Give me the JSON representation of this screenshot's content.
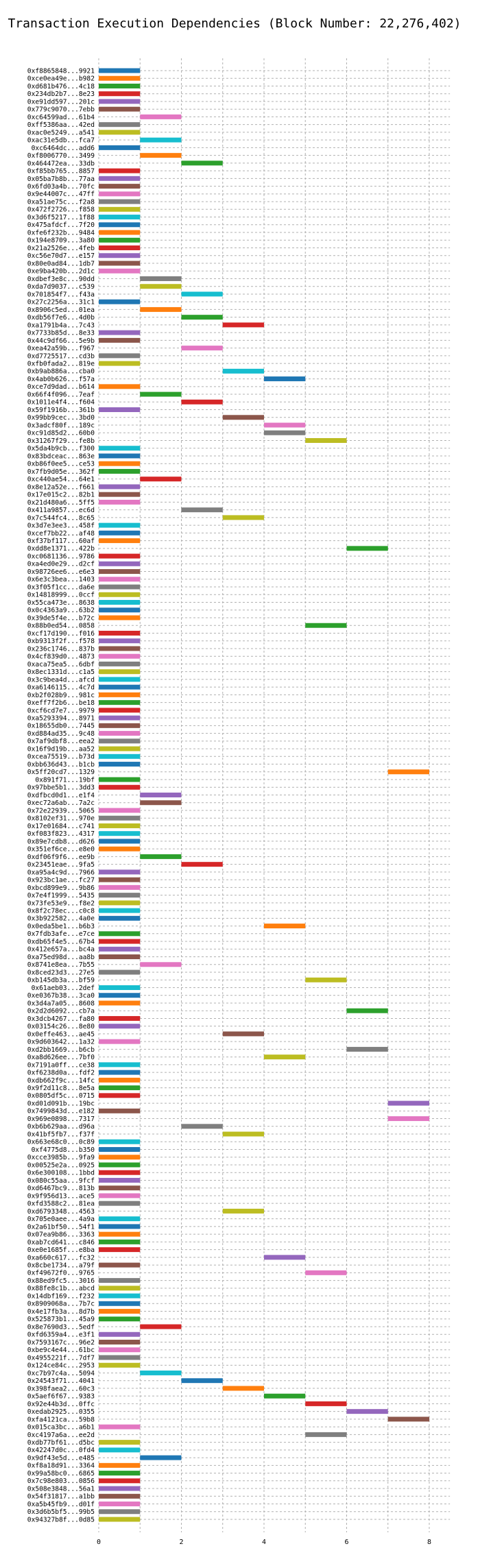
{
  "chart_data": {
    "type": "bar",
    "orientation": "horizontal",
    "title": "Transaction Execution Dependencies (Block Number: 22,276,402)",
    "xlabel": "",
    "ylabel": "",
    "xlim": [
      0,
      8.5
    ],
    "xticks": [
      0,
      2,
      4,
      6,
      8
    ],
    "grid": true,
    "palette": [
      "#1f77b4",
      "#ff7f0e",
      "#2ca02c",
      "#d62728",
      "#9467bd",
      "#8c564b",
      "#e377c2",
      "#7f7f7f",
      "#bcbd22",
      "#17becf"
    ],
    "bar_width": 1,
    "transactions": [
      {
        "hash": "0xf8865848...9921",
        "start": 0
      },
      {
        "hash": "0xce0ea49e...b982",
        "start": 0
      },
      {
        "hash": "0xd681b476...4c18",
        "start": 0
      },
      {
        "hash": "0x234db2b7...8e23",
        "start": 0
      },
      {
        "hash": "0xe91dd597...201c",
        "start": 0
      },
      {
        "hash": "0x779c9070...7ebb",
        "start": 0
      },
      {
        "hash": "0xc64599ad...61b4",
        "start": 1
      },
      {
        "hash": "0xff5386aa...42ed",
        "start": 0
      },
      {
        "hash": "0xac0e5249...a541",
        "start": 0
      },
      {
        "hash": "0xac31e5db...fca7",
        "start": 1
      },
      {
        "hash": "0xc6464dc...add6",
        "start": 0
      },
      {
        "hash": "0xf8006770...3499",
        "start": 1
      },
      {
        "hash": "0x464472ea...33db",
        "start": 2
      },
      {
        "hash": "0xf85bb765...8857",
        "start": 0
      },
      {
        "hash": "0x05ba7b8b...77aa",
        "start": 0
      },
      {
        "hash": "0x6fd03a4b...70fc",
        "start": 0
      },
      {
        "hash": "0x9e44007c...47ff",
        "start": 0
      },
      {
        "hash": "0xa51ae75c...f2a8",
        "start": 0
      },
      {
        "hash": "0x472f2726...f858",
        "start": 0
      },
      {
        "hash": "0x3d6f5217...1f88",
        "start": 0
      },
      {
        "hash": "0x475afdcf...7f20",
        "start": 0
      },
      {
        "hash": "0xfe6f232b...9484",
        "start": 0
      },
      {
        "hash": "0x194e8709...3a80",
        "start": 0
      },
      {
        "hash": "0x21a2526e...4feb",
        "start": 0
      },
      {
        "hash": "0xc56e70d7...e157",
        "start": 0
      },
      {
        "hash": "0x80e0ad84...1db7",
        "start": 0
      },
      {
        "hash": "0xe9ba420b...2d1c",
        "start": 0
      },
      {
        "hash": "0xdbef3e8c...90dd",
        "start": 1
      },
      {
        "hash": "0xda7d9037...c539",
        "start": 1
      },
      {
        "hash": "0x701854f7...f43a",
        "start": 2
      },
      {
        "hash": "0x27c2256a...31c1",
        "start": 0
      },
      {
        "hash": "0x8906c5ed...01ea",
        "start": 1
      },
      {
        "hash": "0xdb56f7e6...4d0b",
        "start": 2
      },
      {
        "hash": "0xa1791b4a...7c43",
        "start": 3
      },
      {
        "hash": "0x7733b85d...8e33",
        "start": 0
      },
      {
        "hash": "0x44c9df66...5e9b",
        "start": 0
      },
      {
        "hash": "0xea42a59b...f967",
        "start": 2
      },
      {
        "hash": "0xd7725517...cd3b",
        "start": 0
      },
      {
        "hash": "0xfb0fada2...819e",
        "start": 0
      },
      {
        "hash": "0xb9ab886a...cba0",
        "start": 3
      },
      {
        "hash": "0x4ab0b626...f57a",
        "start": 4
      },
      {
        "hash": "0xce7d9dad...b614",
        "start": 0
      },
      {
        "hash": "0x66f4f096...7eaf",
        "start": 1
      },
      {
        "hash": "0x1011e4f4...f604",
        "start": 2
      },
      {
        "hash": "0x59f1916b...361b",
        "start": 0
      },
      {
        "hash": "0x99bb9cec...3bd0",
        "start": 3
      },
      {
        "hash": "0x3adcf80f...189c",
        "start": 4
      },
      {
        "hash": "0xc91d85d2...60b0",
        "start": 4
      },
      {
        "hash": "0x31267f29...fe8b",
        "start": 5
      },
      {
        "hash": "0x5da4b9cb...f300",
        "start": 0
      },
      {
        "hash": "0x83bdceac...863e",
        "start": 0
      },
      {
        "hash": "0xb86f0ee5...ce53",
        "start": 0
      },
      {
        "hash": "0x7fb9d05e...362f",
        "start": 0
      },
      {
        "hash": "0xc440ae54...64e1",
        "start": 1
      },
      {
        "hash": "0x8e12a52e...f661",
        "start": 0
      },
      {
        "hash": "0x17e015c2...82b1",
        "start": 0
      },
      {
        "hash": "0x21d480a6...5ff5",
        "start": 0
      },
      {
        "hash": "0x411a9857...ec6d",
        "start": 2
      },
      {
        "hash": "0x7c544fc4...8c65",
        "start": 3
      },
      {
        "hash": "0x3d7e3ee3...458f",
        "start": 0
      },
      {
        "hash": "0xcef7bb22...af48",
        "start": 0
      },
      {
        "hash": "0xf37bf117...60af",
        "start": 0
      },
      {
        "hash": "0xdd8e1371...422b",
        "start": 6
      },
      {
        "hash": "0xc0681136...9786",
        "start": 0
      },
      {
        "hash": "0xa4ed0e29...d2cf",
        "start": 0
      },
      {
        "hash": "0x98726ee6...e6e3",
        "start": 0
      },
      {
        "hash": "0x6e3c3bea...1403",
        "start": 0
      },
      {
        "hash": "0x3f05f1cc...da6e",
        "start": 0
      },
      {
        "hash": "0x14818999...0ccf",
        "start": 0
      },
      {
        "hash": "0x55ca473e...8638",
        "start": 0
      },
      {
        "hash": "0x0c4363a9...63b2",
        "start": 0
      },
      {
        "hash": "0x39de5f4e...b72c",
        "start": 0
      },
      {
        "hash": "0x88b0ed54...0858",
        "start": 5
      },
      {
        "hash": "0xcf17d190...f016",
        "start": 0
      },
      {
        "hash": "0xb9313f2f...f578",
        "start": 0
      },
      {
        "hash": "0x236c1746...837b",
        "start": 0
      },
      {
        "hash": "0x4cf839d0...4873",
        "start": 0
      },
      {
        "hash": "0xaca75ea5...6dbf",
        "start": 0
      },
      {
        "hash": "0x8ec1331d...c1a5",
        "start": 0
      },
      {
        "hash": "0x3c9bea4d...afcd",
        "start": 0
      },
      {
        "hash": "0xa6146115...4c7d",
        "start": 0
      },
      {
        "hash": "0xb2f028b9...981c",
        "start": 0
      },
      {
        "hash": "0xeff7f2b6...be18",
        "start": 0
      },
      {
        "hash": "0xcf6cd7e7...9979",
        "start": 0
      },
      {
        "hash": "0xa5293394...8971",
        "start": 0
      },
      {
        "hash": "0x18655db0...7445",
        "start": 0
      },
      {
        "hash": "0xd884ad35...9c48",
        "start": 0
      },
      {
        "hash": "0x7af9dbf8...eea2",
        "start": 0
      },
      {
        "hash": "0x16f9d19b...aa52",
        "start": 0
      },
      {
        "hash": "0xcea75519...b73d",
        "start": 0
      },
      {
        "hash": "0xbb636d43...b1cb",
        "start": 0
      },
      {
        "hash": "0x5ff20cd7...1329",
        "start": 7
      },
      {
        "hash": "0x891f71...19bf",
        "start": 0
      },
      {
        "hash": "0x97bbe5b1...3dd3",
        "start": 0
      },
      {
        "hash": "0xdfbcd0d1...e1f4",
        "start": 1
      },
      {
        "hash": "0xec72a6ab...7a2c",
        "start": 1
      },
      {
        "hash": "0x72e22939...5065",
        "start": 0
      },
      {
        "hash": "0x8102ef31...970e",
        "start": 0
      },
      {
        "hash": "0x17e01684...c741",
        "start": 0
      },
      {
        "hash": "0xf083f823...4317",
        "start": 0
      },
      {
        "hash": "0x89e7cdb8...d626",
        "start": 0
      },
      {
        "hash": "0x351ef6ce...e8e0",
        "start": 0
      },
      {
        "hash": "0xdf06f9f6...ee9b",
        "start": 1
      },
      {
        "hash": "0x23451eae...9fa5",
        "start": 2
      },
      {
        "hash": "0xa95a4c9d...7966",
        "start": 0
      },
      {
        "hash": "0x923bc1ae...fc27",
        "start": 0
      },
      {
        "hash": "0xbcd899e9...9b86",
        "start": 0
      },
      {
        "hash": "0x7e4f1999...5435",
        "start": 0
      },
      {
        "hash": "0x73fe53e9...f8e2",
        "start": 0
      },
      {
        "hash": "0x8f2c78ec...c0c8",
        "start": 0
      },
      {
        "hash": "0x3b922582...4a0e",
        "start": 0
      },
      {
        "hash": "0x0eda5be1...b6b3",
        "start": 4
      },
      {
        "hash": "0x7fdb3afe...e7ce",
        "start": 0
      },
      {
        "hash": "0xdb65f4e5...67b4",
        "start": 0
      },
      {
        "hash": "0x412e657a...bc4a",
        "start": 0
      },
      {
        "hash": "0xa75ed98d...aa8b",
        "start": 0
      },
      {
        "hash": "0x8741e8ea...7b55",
        "start": 1
      },
      {
        "hash": "0x8ced23d3...27e5",
        "start": 0
      },
      {
        "hash": "0xb145db3a...bf59",
        "start": 5
      },
      {
        "hash": "0x61aeb03...2def",
        "start": 0
      },
      {
        "hash": "0xe0367b38...3ca0",
        "start": 0
      },
      {
        "hash": "0x3d4a7a05...8608",
        "start": 0
      },
      {
        "hash": "0x2d2d6092...cb7a",
        "start": 6
      },
      {
        "hash": "0x3dcb4267...fa80",
        "start": 0
      },
      {
        "hash": "0x03154c26...8e80",
        "start": 0
      },
      {
        "hash": "0x0effe463...ae45",
        "start": 3
      },
      {
        "hash": "0x9d603642...1a32",
        "start": 0
      },
      {
        "hash": "0xd2bb1669...b6cb",
        "start": 6
      },
      {
        "hash": "0xa8d626ee...7bf0",
        "start": 4
      },
      {
        "hash": "0x7191a0ff...ce38",
        "start": 0
      },
      {
        "hash": "0xf6238d0a...fdf2",
        "start": 0
      },
      {
        "hash": "0xdb662f9c...14fc",
        "start": 0
      },
      {
        "hash": "0x9f2d11c8...8e5a",
        "start": 0
      },
      {
        "hash": "0x0805df5c...0715",
        "start": 0
      },
      {
        "hash": "0xd01d091b...19bc",
        "start": 7
      },
      {
        "hash": "0x7499843d...e182",
        "start": 0
      },
      {
        "hash": "0x969e0898...7317",
        "start": 7
      },
      {
        "hash": "0xb6b629aa...d96a",
        "start": 2
      },
      {
        "hash": "0x41bf5fb7...f37f",
        "start": 3
      },
      {
        "hash": "0x663e68c0...0c89",
        "start": 0
      },
      {
        "hash": "0xf4775d8...b350",
        "start": 0
      },
      {
        "hash": "0xcce3985b...9fa9",
        "start": 0
      },
      {
        "hash": "0x00525e2a...0925",
        "start": 0
      },
      {
        "hash": "0x6e300108...1bbd",
        "start": 0
      },
      {
        "hash": "0x080c55aa...9fcf",
        "start": 0
      },
      {
        "hash": "0xd6467bc9...813b",
        "start": 0
      },
      {
        "hash": "0x9f956d13...ace5",
        "start": 0
      },
      {
        "hash": "0xfd3588c2...81ea",
        "start": 0
      },
      {
        "hash": "0xd6793348...4563",
        "start": 3
      },
      {
        "hash": "0x705e0aee...4a9a",
        "start": 0
      },
      {
        "hash": "0x2a61bf50...54f1",
        "start": 0
      },
      {
        "hash": "0x07ea9b86...3363",
        "start": 0
      },
      {
        "hash": "0xab7cd641...c846",
        "start": 0
      },
      {
        "hash": "0xe0e1685f...e8ba",
        "start": 0
      },
      {
        "hash": "0xa660c617...fc32",
        "start": 4
      },
      {
        "hash": "0x8cbe1734...a79f",
        "start": 0
      },
      {
        "hash": "0xf49672f0...9765",
        "start": 5
      },
      {
        "hash": "0x88ed9fc5...3016",
        "start": 0
      },
      {
        "hash": "0x88fe8c1b...abcd",
        "start": 0
      },
      {
        "hash": "0x14dbf169...f232",
        "start": 0
      },
      {
        "hash": "0x8909068a...7b7c",
        "start": 0
      },
      {
        "hash": "0x4e17fb3a...8d7b",
        "start": 0
      },
      {
        "hash": "0x525873b1...45a9",
        "start": 0
      },
      {
        "hash": "0x8e7690d3...5edf",
        "start": 1
      },
      {
        "hash": "0xfd6359a4...e3f1",
        "start": 0
      },
      {
        "hash": "0x7593167c...96e2",
        "start": 0
      },
      {
        "hash": "0xbe9c4e44...61bc",
        "start": 0
      },
      {
        "hash": "0x4955221f...7df7",
        "start": 0
      },
      {
        "hash": "0x124ce84c...2953",
        "start": 0
      },
      {
        "hash": "0xc7b97c4a...5094",
        "start": 1
      },
      {
        "hash": "0x24543f71...4041",
        "start": 2
      },
      {
        "hash": "0x398faea2...60c3",
        "start": 3
      },
      {
        "hash": "0x5aef6f67...9383",
        "start": 4
      },
      {
        "hash": "0x92e44b3d...0ffc",
        "start": 5
      },
      {
        "hash": "0xedab2925...0355",
        "start": 6
      },
      {
        "hash": "0xfa4121ca...59b8",
        "start": 7
      },
      {
        "hash": "0x015ca3bc...a6b1",
        "start": 0
      },
      {
        "hash": "0xc4197a6a...ee2d",
        "start": 5
      },
      {
        "hash": "0xdb77bf61...d5bc",
        "start": 0
      },
      {
        "hash": "0x42247d0c...0fd4",
        "start": 0
      },
      {
        "hash": "0x9df43e5d...e485",
        "start": 1
      },
      {
        "hash": "0xf8a18d91...3364",
        "start": 0
      },
      {
        "hash": "0x99a58bc0...6865",
        "start": 0
      },
      {
        "hash": "0x7c98e803...0856",
        "start": 0
      },
      {
        "hash": "0x508e3848...56a1",
        "start": 0
      },
      {
        "hash": "0x54f31817...a1bb",
        "start": 0
      },
      {
        "hash": "0xa5b45fb9...d01f",
        "start": 0
      },
      {
        "hash": "0x3d6b5bf5...99b5",
        "start": 0
      },
      {
        "hash": "0x94327b8f...0d85",
        "start": 0
      }
    ]
  }
}
